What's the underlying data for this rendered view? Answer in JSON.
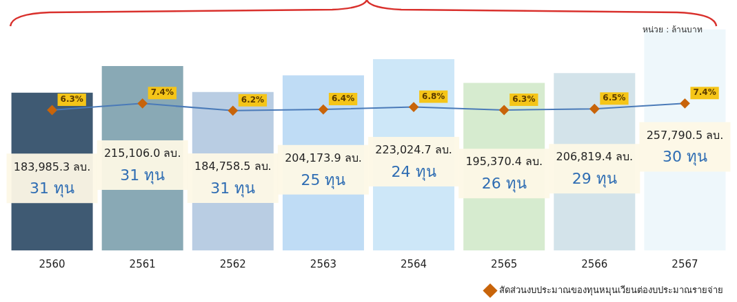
{
  "chart_data": {
    "type": "bar",
    "categories": [
      "2560",
      "2561",
      "2562",
      "2563",
      "2564",
      "2565",
      "2566",
      "2567"
    ],
    "series": [
      {
        "colors": [
          "#3f5a73",
          "#89a9b5",
          "#b9cde3",
          "#bfdcf5",
          "#cde7f8",
          "#d6ebcf",
          "#d3e3ea",
          "#eef7fb"
        ],
        "values": [
          183985.3,
          215106.0,
          184758.5,
          204173.9,
          223024.7,
          195370.4,
          206819.4,
          257790.5
        ],
        "value_labels": [
          "183,985.3 ลบ.",
          "215,106.0 ลบ.",
          "184,758.5 ลบ.",
          "204,173.9 ลบ.",
          "223,024.7 ลบ.",
          "195,370.4 ลบ.",
          "206,819.4 ลบ.",
          "257,790.5 ลบ."
        ]
      },
      {
        "type": "line",
        "axis": "y2",
        "name": "สัดส่วนงบประมาณของทุนหมุนเวียนต่องบประมาณรายจ่าย",
        "color": "#4a7ab8",
        "marker": "diamond",
        "values": [
          6.3,
          7.4,
          6.2,
          6.4,
          6.8,
          6.3,
          6.5,
          7.4
        ],
        "value_labels": [
          "6.3%",
          "7.4%",
          "6.2%",
          "6.4%",
          "6.8%",
          "6.3%",
          "6.5%",
          "7.4%"
        ]
      }
    ],
    "ylim": [
      0,
      260000
    ],
    "y2lim": [
      -17,
      20
    ],
    "tick_labels": "x",
    "grid": false,
    "legend": "bottom right",
    "annotations": [
      "หน่วย : ล้านบาท",
      "31 ทุน",
      "31 ทุน",
      "31 ทุน",
      "25 ทุน",
      "24 ทุน",
      "26 ทุน",
      "29 ทุน",
      "30 ทุน"
    ]
  }
}
